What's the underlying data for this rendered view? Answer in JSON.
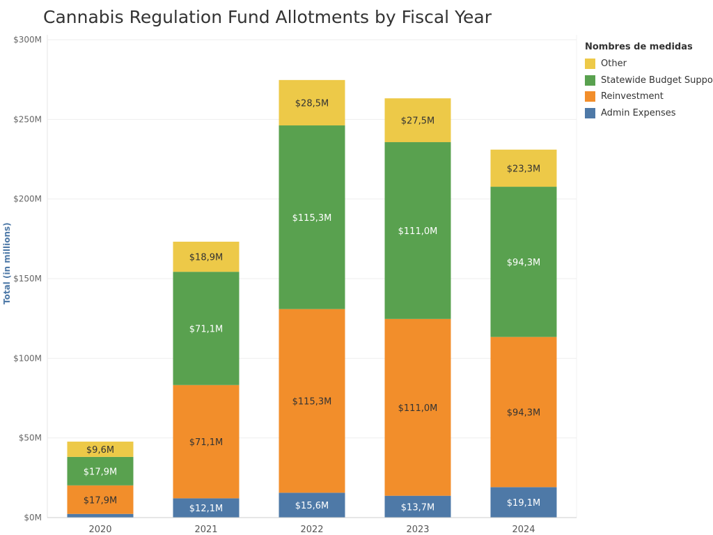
{
  "chart_data": {
    "type": "bar",
    "stacked": true,
    "title": "Cannabis Regulation Fund Allotments by Fiscal Year",
    "ylabel": "Total (in millions)",
    "xlabel": "",
    "categories": [
      "2020",
      "2021",
      "2022",
      "2023",
      "2024"
    ],
    "ylim": [
      0,
      300
    ],
    "yticks": [
      0,
      50,
      100,
      150,
      200,
      250,
      300
    ],
    "ytick_labels": [
      "$0M",
      "$50M",
      "$100M",
      "$150M",
      "$200M",
      "$250M",
      "$300M"
    ],
    "grid": true,
    "legend_position": "right",
    "legend_title": "Nombres de medidas",
    "series": [
      {
        "name": "Admin Expenses",
        "color": "#4e79a7",
        "values": [
          2.3,
          12.1,
          15.6,
          13.7,
          19.1
        ],
        "labels": [
          "",
          "$12,1M",
          "$15,6M",
          "$13,7M",
          "$19,1M"
        ],
        "label_color": "#ffffff"
      },
      {
        "name": "Reinvestment",
        "color": "#f28e2b",
        "values": [
          17.9,
          71.1,
          115.3,
          111.0,
          94.3
        ],
        "labels": [
          "$17,9M",
          "$71,1M",
          "$115,3M",
          "$111,0M",
          "$94,3M"
        ],
        "label_color": "#333333"
      },
      {
        "name": "Statewide Budget Support",
        "color": "#59a14f",
        "values": [
          17.9,
          71.1,
          115.3,
          111.0,
          94.3
        ],
        "labels": [
          "$17,9M",
          "$71,1M",
          "$115,3M",
          "$111,0M",
          "$94,3M"
        ],
        "label_color": "#ffffff"
      },
      {
        "name": "Other",
        "color": "#edc948",
        "values": [
          9.6,
          18.9,
          28.5,
          27.5,
          23.3
        ],
        "labels": [
          "$9,6M",
          "$18,9M",
          "$28,5M",
          "$27,5M",
          "$23,3M"
        ],
        "label_color": "#333333"
      }
    ],
    "legend_order": [
      "Other",
      "Statewide Budget Support",
      "Reinvestment",
      "Admin Expenses"
    ]
  }
}
